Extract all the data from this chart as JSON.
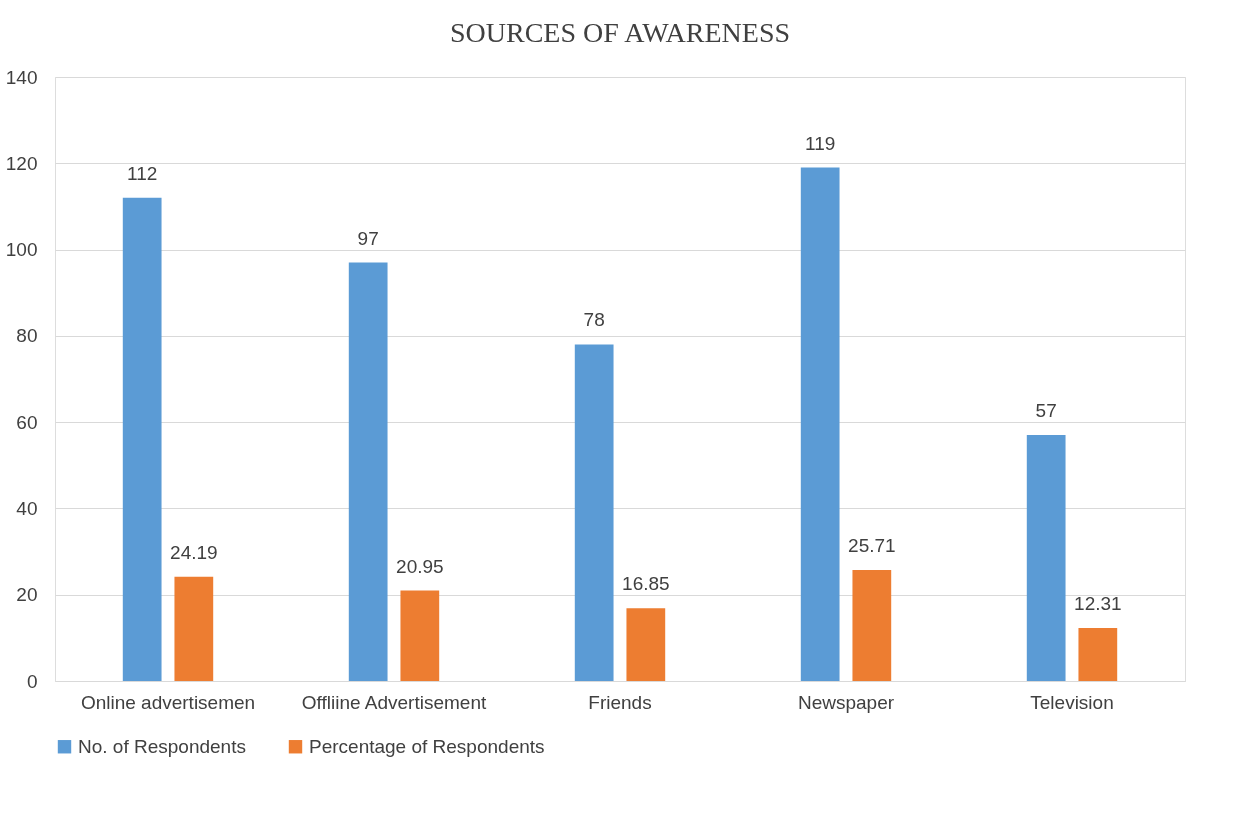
{
  "chart_data": {
    "type": "bar",
    "title": "SOURCES OF AWARENESS",
    "categories": [
      "Online advertisemen",
      "Offliine Advertisement",
      "Friends",
      "Newspaper",
      "Television"
    ],
    "series": [
      {
        "name": "No. of Respondents",
        "color": "#5b9bd5",
        "values": [
          112,
          97,
          78,
          119,
          57
        ]
      },
      {
        "name": "Percentage of Respondents",
        "color": "#ed7d31",
        "values": [
          24.19,
          20.95,
          16.85,
          25.71,
          12.31
        ]
      }
    ],
    "ylim": [
      0,
      140
    ],
    "yticks": [
      0,
      20,
      40,
      60,
      80,
      100,
      120,
      140
    ],
    "grid": "y",
    "legend": "bottom",
    "data_labels": true
  }
}
